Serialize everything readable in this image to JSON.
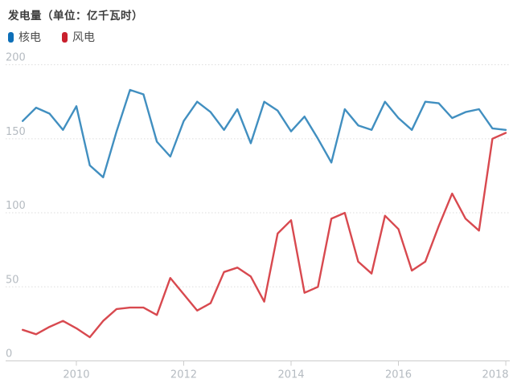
{
  "title": "发电量（单位：亿千瓦时）",
  "legend": {
    "items": [
      {
        "label": "核电",
        "color": "#0d6fb8"
      },
      {
        "label": "风电",
        "color": "#c9202d"
      }
    ]
  },
  "chart_data": {
    "type": "line",
    "x": [
      "2009Q1",
      "2009Q2",
      "2009Q3",
      "2009Q4",
      "2010Q1",
      "2010Q2",
      "2010Q3",
      "2010Q4",
      "2011Q1",
      "2011Q2",
      "2011Q3",
      "2011Q4",
      "2012Q1",
      "2012Q2",
      "2012Q3",
      "2012Q4",
      "2013Q1",
      "2013Q2",
      "2013Q3",
      "2013Q4",
      "2014Q1",
      "2014Q2",
      "2014Q3",
      "2014Q4",
      "2015Q1",
      "2015Q2",
      "2015Q3",
      "2015Q4",
      "2016Q1",
      "2016Q2",
      "2016Q3",
      "2016Q4",
      "2017Q1",
      "2017Q2",
      "2017Q3",
      "2017Q4",
      "2018Q1"
    ],
    "series": [
      {
        "name": "核电",
        "color": "#418fc0",
        "values": [
          162,
          171,
          167,
          156,
          172,
          132,
          124,
          155,
          183,
          180,
          148,
          138,
          162,
          175,
          168,
          156,
          170,
          147,
          175,
          169,
          155,
          165,
          150,
          134,
          170,
          159,
          156,
          175,
          164,
          156,
          175,
          174,
          164,
          168,
          170,
          157,
          156
        ]
      },
      {
        "name": "风电",
        "color": "#d8494f",
        "values": [
          21,
          18,
          23,
          27,
          22,
          16,
          27,
          35,
          36,
          36,
          31,
          56,
          45,
          34,
          39,
          60,
          63,
          57,
          40,
          86,
          95,
          46,
          50,
          96,
          100,
          67,
          59,
          98,
          89,
          61,
          67,
          91,
          113,
          96,
          88,
          150,
          154
        ]
      }
    ],
    "title": "发电量（单位：亿千瓦时）",
    "xlabel": "",
    "ylabel": "",
    "ylim": [
      0,
      200
    ],
    "y_ticks": [
      0,
      50,
      100,
      150,
      200
    ],
    "x_tick_labels": [
      "2010",
      "2012",
      "2014",
      "2016",
      "2018"
    ],
    "grid": "horizontal-dotted",
    "legend_position": "top-left",
    "axis_label_color": "#b5bbc1",
    "axis_line_color": "#cccccc",
    "grid_line_color": "#dddddd"
  }
}
